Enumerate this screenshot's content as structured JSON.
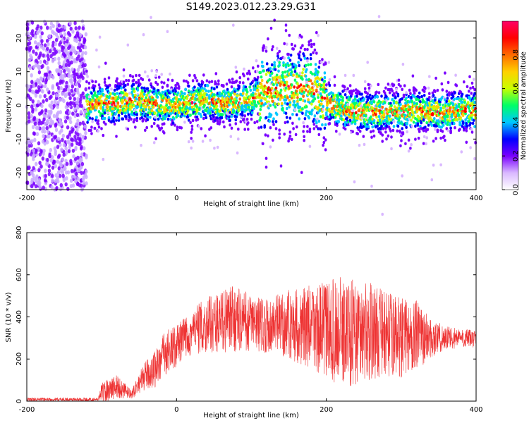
{
  "figure_title": "S149.2023.012.23.29.G31",
  "chart_data": [
    {
      "type": "heatmap",
      "title": "",
      "xlabel": "Height of straight line (km)",
      "ylabel": "Frequency (Hz)",
      "xlim": [
        -200,
        400
      ],
      "ylim": [
        -25,
        25
      ],
      "x_ticks": [
        -200,
        0,
        200,
        400
      ],
      "y_ticks": [
        -20,
        -10,
        0,
        10,
        20
      ],
      "colorbar": {
        "label": "Normalized spectral amplitude",
        "range": [
          0,
          1
        ],
        "ticks": [
          0.0,
          0.2,
          0.4,
          0.6,
          0.8
        ],
        "colormap": [
          "#ffffff",
          "#d9b8ff",
          "#7a00ff",
          "#0000ff",
          "#00c8ff",
          "#00ff66",
          "#c8ff00",
          "#ffd000",
          "#ff6a00",
          "#ff0000",
          "#ff0066"
        ]
      },
      "ridge": {
        "x": [
          -120,
          -100,
          -80,
          -60,
          -40,
          -20,
          0,
          20,
          40,
          60,
          80,
          100,
          120,
          140,
          160,
          180,
          200,
          220,
          240,
          260,
          280,
          300,
          320,
          340,
          360,
          380,
          400
        ],
        "y": [
          0,
          0.5,
          0.5,
          1.5,
          1,
          0,
          0,
          1,
          1.5,
          0.5,
          1,
          2,
          4,
          5,
          5,
          5,
          1,
          -1,
          -2,
          -2,
          -2,
          -2,
          -1.5,
          -2,
          -2,
          -1.5,
          -1.5
        ]
      },
      "noise_region_x": [
        -200,
        -120
      ]
    },
    {
      "type": "line",
      "title": "",
      "xlabel": "Height of straight line (km)",
      "ylabel": "SNR (10 * v/v)",
      "xlim": [
        -200,
        400
      ],
      "ylim": [
        0,
        800
      ],
      "x_ticks": [
        -200,
        0,
        200,
        400
      ],
      "y_ticks": [
        0,
        200,
        400,
        600,
        800
      ],
      "series_color": "#ee3333",
      "envelope": {
        "x": [
          -200,
          -105,
          -100,
          -80,
          -60,
          -45,
          -30,
          -15,
          0,
          20,
          40,
          60,
          80,
          100,
          120,
          140,
          160,
          180,
          200,
          220,
          240,
          260,
          280,
          300,
          320,
          340,
          360,
          380,
          400
        ],
        "mean": [
          8,
          8,
          40,
          70,
          30,
          110,
          150,
          230,
          260,
          330,
          360,
          380,
          390,
          370,
          360,
          365,
          360,
          350,
          340,
          330,
          330,
          330,
          320,
          300,
          310,
          300,
          300,
          300,
          295
        ],
        "spread": [
          8,
          8,
          50,
          60,
          20,
          60,
          90,
          110,
          100,
          110,
          130,
          150,
          160,
          140,
          130,
          150,
          180,
          200,
          230,
          260,
          260,
          230,
          200,
          190,
          170,
          90,
          60,
          45,
          40
        ]
      }
    }
  ]
}
